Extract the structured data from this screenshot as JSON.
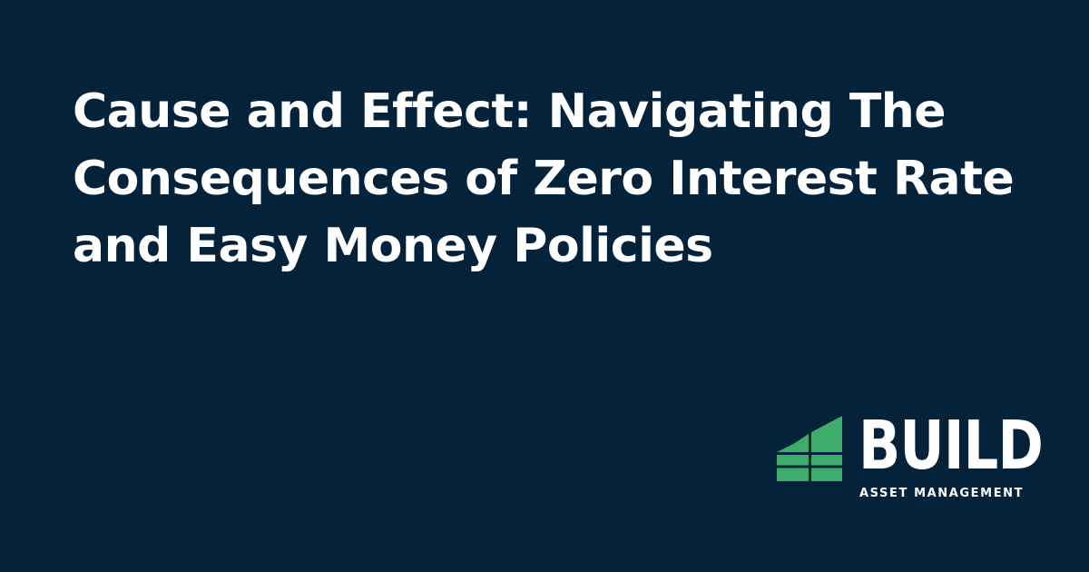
{
  "headline": {
    "lines": [
      "Cause and Effect: Navigating The",
      "Consequences of Zero Interest Rate",
      "and Easy Money Policies"
    ]
  },
  "logo": {
    "icon": "green-stepped-building-icon",
    "wordmark": "BUILD",
    "tagline": "ASSET MANAGEMENT",
    "color": "#3dad6b"
  },
  "colors": {
    "background": "#04233a",
    "text": "#ffffff",
    "accent": "#3dad6b"
  }
}
